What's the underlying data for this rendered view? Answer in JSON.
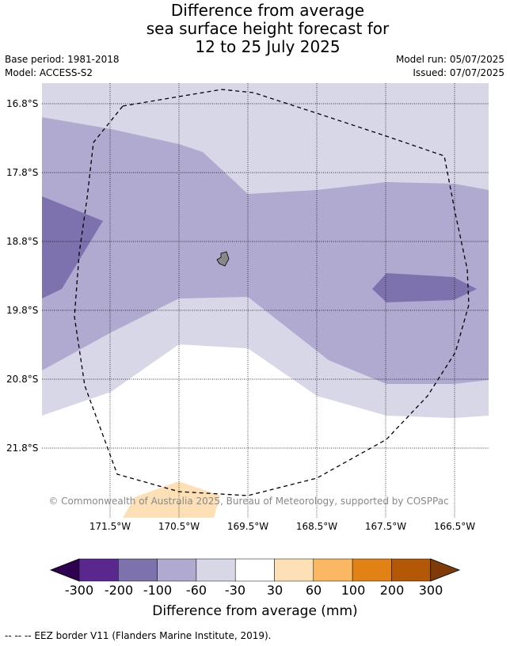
{
  "title": {
    "line1": "Difference from average",
    "line2": "sea surface height forecast for",
    "line3": "12 to 25 July 2025"
  },
  "meta": {
    "base_period": "Base period: 1981-2018",
    "model": "Model: ACCESS-S2",
    "model_run": "Model run: 05/07/2025",
    "issued": "Issued: 07/07/2025"
  },
  "map": {
    "latitudes": [
      "16.8°S",
      "17.8°S",
      "18.8°S",
      "19.8°S",
      "20.8°S",
      "21.8°S"
    ],
    "longitudes": [
      "171.5°W",
      "170.5°W",
      "169.5°W",
      "168.5°W",
      "167.5°W",
      "166.5°W"
    ],
    "copyright": "© Commonwealth of Australia 2025, Bureau of Meteorology, supported by COSPPac",
    "colors": {
      "c_m30_m60": "#d7d7e8",
      "c_m60_m100": "#b0a9d0",
      "c_m100_m200": "#7e72ae",
      "c_30_60": "#fde0b6",
      "land": "#888888",
      "border": "#000000"
    }
  },
  "colorbar": {
    "ticks": [
      "-300",
      "-200",
      "-100",
      "-60",
      "-30",
      "30",
      "60",
      "100",
      "200",
      "300"
    ],
    "colors": [
      "#2f0050",
      "#5a278f",
      "#7e72ae",
      "#b0a9d0",
      "#d7d7e8",
      "#ffffff",
      "#fde0b6",
      "#fbb862",
      "#e08214",
      "#b35806",
      "#7f3b08"
    ],
    "label": "Difference from average (mm)"
  },
  "footnote": "--  --  -- EEZ border V11 (Flanders Marine Institute, 2019)."
}
